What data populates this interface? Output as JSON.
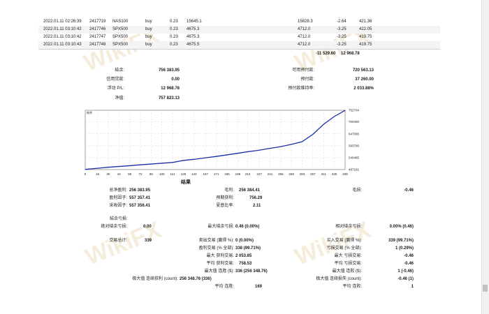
{
  "deals": [
    {
      "time": "2022.01.11 02:26:39",
      "deal": "2417719",
      "symbol": "NAS100",
      "type": "buy",
      "volume": "0.23",
      "price": "15645.1",
      "close_price": "15828.3",
      "swap": "-2.64",
      "profit": "421.36"
    },
    {
      "time": "2022.01.11 03:10:42",
      "deal": "2417746",
      "symbol": "SPX500",
      "type": "buy",
      "volume": "0.23",
      "price": "4675.3",
      "close_price": "4712.0",
      "swap": "-3.25",
      "profit": "422.05"
    },
    {
      "time": "2022.01.11 03:10:42",
      "deal": "2417747",
      "symbol": "SPX500",
      "type": "buy",
      "volume": "0.23",
      "price": "4675.3",
      "close_price": "4712.0",
      "swap": "-3.25",
      "profit": "419.75"
    },
    {
      "time": "2022.01.11 03:10:43",
      "deal": "2417748",
      "symbol": "SPX500",
      "type": "buy",
      "volume": "0.23",
      "price": "4675.5",
      "close_price": "4712.0",
      "swap": "-3.25",
      "profit": "419.75"
    }
  ],
  "totals": {
    "swap_total": "-11 529.60",
    "profit_total": "12 968.78"
  },
  "summary": {
    "balance_label": "結余:",
    "balance_value": "756 383.95",
    "credit_label": "信用贷款:",
    "credit_value": "0.00",
    "floating_label": "浮动 P/L:",
    "floating_value": "12 968.78",
    "equity_label": "净值:",
    "equity_value": "757 823.13",
    "free_margin_label": "可用预付款:",
    "free_margin_value": "720 563.13",
    "margin_label": "预付款:",
    "margin_value": "37 260.00",
    "margin_level_label": "预付款维持率:",
    "margin_level_value": "2 033.88%"
  },
  "chart_data": {
    "type": "line",
    "title": "结余",
    "xlabel": "",
    "ylabel": "",
    "x_ticks": [
      "0",
      "16",
      "30",
      "44",
      "58",
      "72",
      "86",
      "100",
      "114",
      "128",
      "142",
      "157",
      "171",
      "185",
      "199",
      "212",
      "227",
      "241",
      "255",
      "269",
      "283",
      "297",
      "311",
      "325",
      "339"
    ],
    "y_ticks": [
      "752704",
      "700400",
      "647095",
      "593790",
      "540485",
      "487181"
    ],
    "ylim": [
      487181,
      752704
    ],
    "xlim": [
      0,
      339
    ],
    "grid": true,
    "series": [
      {
        "name": "",
        "color": "#1a2fa8",
        "x": [
          0,
          16,
          30,
          44,
          58,
          72,
          86,
          100,
          114,
          128,
          142,
          157,
          171,
          185,
          199,
          212,
          227,
          241,
          255,
          269,
          283,
          297,
          311,
          325,
          339
        ],
        "y": [
          488000,
          493000,
          497500,
          501000,
          504500,
          508500,
          512000,
          515500,
          519000,
          528000,
          533000,
          540000,
          546000,
          553000,
          560000,
          567000,
          574000,
          582000,
          590000,
          600000,
          612000,
          645000,
          690000,
          725000,
          752000
        ]
      }
    ]
  },
  "results_title": "结果",
  "stats": {
    "total_net_profit_label": "总净盈利:",
    "total_net_profit_value": "256 383.95",
    "gross_profit_label": "毛利:",
    "gross_profit_value": "256 384.41",
    "gross_loss_label": "毛损:",
    "gross_loss_value": "-0.46",
    "profit_factor_label": "盈利因子:",
    "profit_factor_value": "557 357.41",
    "expected_payoff_label": "预期获利:",
    "expected_payoff_value": "756.29",
    "recovery_factor_label": "采收因子:",
    "recovery_factor_value": "557 356.41",
    "sharpe_label": "夏普比率:",
    "sharpe_value": "2.11",
    "drawdown_header": "結余亏损:",
    "abs_drawdown_label": "绝对结余亏损:",
    "abs_drawdown_value": "0.00",
    "max_drawdown_label": "最大结余亏损:",
    "max_drawdown_value": "0.46 (0.00%)",
    "rel_drawdown_label": "相对结余亏损:",
    "rel_drawdown_value": "0.00% (0.46)",
    "total_trades_label": "交易总计:",
    "total_trades_value": "339",
    "short_trades_label": "卖出交易 (赢得 %):",
    "short_trades_value": "0 (0.00%)",
    "long_trades_label": "买入交易 (赢得 %):",
    "long_trades_value": "339 (99.71%)",
    "profit_trades_label": "盈利交易 (% 全部):",
    "profit_trades_value": "338 (99.71%)",
    "loss_trades_label": "亏损交易 (% 全部):",
    "loss_trades_value": "1 (0.29%)",
    "largest_profit_label": "最大 获利交易:",
    "largest_profit_value": "2 053.85",
    "largest_loss_label": "最大 亏损交易:",
    "largest_loss_value": "-0.46",
    "avg_profit_label": "平均 获利交易:",
    "avg_profit_value": "758.53",
    "avg_loss_label": "平均 亏损交易:",
    "avg_loss_value": "-0.46",
    "max_consec_wins_label": "最大值 连胜 ($):",
    "max_consec_wins_value": "336 (256 348.76)",
    "max_consec_losses_label": "最大值 连败 ($):",
    "max_consec_losses_value": "1 (-0.46)",
    "max_consec_profit_label": "极大值 连续获利 (count):",
    "max_consec_profit_value": "256 348.76 (336)",
    "max_consec_loss_label": "极大值 连续损失 (count):",
    "max_consec_loss_value": "-0.46 (1)",
    "avg_consec_wins_label": "平均 连胜:",
    "avg_consec_wins_value": "169",
    "avg_consec_losses_label": "平均 连败:",
    "avg_consec_losses_value": "1"
  },
  "watermark": "WikiFX"
}
